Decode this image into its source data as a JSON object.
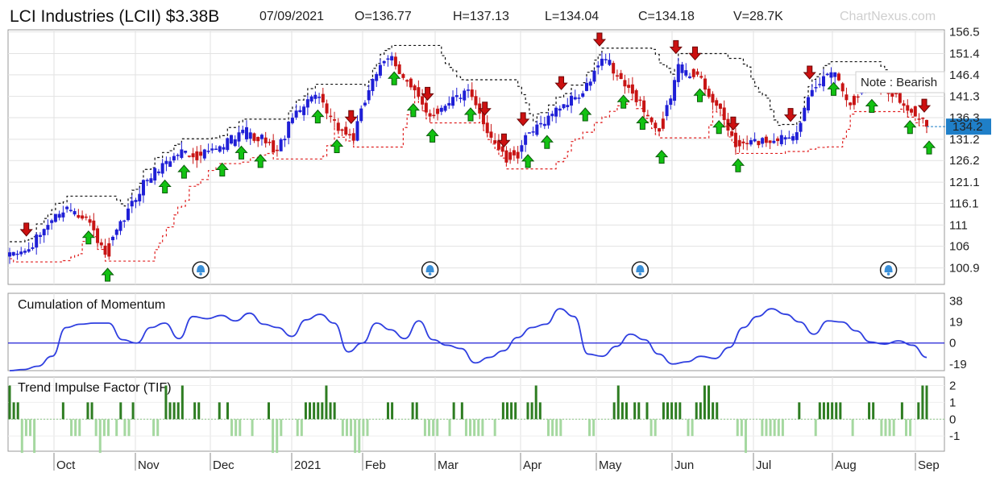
{
  "header": {
    "title": "LCI Industries (LCII) $3.38B",
    "date": "07/09/2021",
    "open": "O=136.77",
    "high": "H=137.13",
    "low": "L=134.04",
    "close": "C=134.18",
    "volume": "V=28.7K",
    "brand": "ChartNexus.com"
  },
  "colors": {
    "bull": "#1f1fd6",
    "bear": "#c81414",
    "momentum": "#2f3fe0",
    "tif_up": "#2e7d22",
    "tif_down": "#a5d8a0",
    "arrow_up": "#12c212",
    "arrow_down": "#cc1010",
    "price_tag": "#1f7fc8",
    "grid": "#e2e2e2"
  },
  "months": [
    "Oct",
    "Nov",
    "Dec",
    "2021",
    "Feb",
    "Mar",
    "Apr",
    "May",
    "Jun",
    "Jul",
    "Aug",
    "Sep"
  ],
  "chart_data": [
    {
      "type": "candlestick",
      "name": "price",
      "ylim": [
        97,
        157
      ],
      "y_ticks": [
        156.5,
        151.4,
        146.4,
        141.3,
        136.3,
        131.2,
        126.2,
        121.1,
        116.1,
        111,
        106,
        100.9
      ],
      "current_price": "134.2",
      "annotation": "Note : Bearish",
      "closes_weekly": [
        103.5,
        105,
        111.5,
        115,
        113,
        104,
        112.5,
        121,
        125,
        128.5,
        127.5,
        129,
        133,
        131,
        128.5,
        138,
        141.5,
        134.5,
        131.5,
        146,
        150.5,
        143,
        137,
        140.5,
        142,
        133.5,
        126,
        131,
        135.5,
        139.5,
        142,
        150,
        145,
        140,
        132,
        148,
        146.5,
        139,
        130,
        130.5,
        131.5,
        132,
        142,
        148,
        140,
        144,
        143,
        139,
        134.2
      ],
      "buy_signal_weeks": [
        4,
        5,
        8,
        9,
        11,
        12,
        13,
        16,
        17,
        20,
        21,
        22,
        24,
        27,
        28,
        30,
        32,
        33,
        34,
        36,
        37,
        38,
        43,
        45,
        47,
        48
      ],
      "sell_signal_weeks": [
        1,
        18,
        22,
        25,
        26,
        27,
        29,
        31,
        35,
        36,
        38,
        41,
        42,
        48
      ],
      "alert_weeks": [
        10,
        22,
        33,
        46
      ]
    },
    {
      "type": "line",
      "name": "Cumulation of Momentum",
      "title": "Cumulation of Momentum",
      "ylim": [
        -25,
        45
      ],
      "y_ticks": [
        38,
        19,
        0,
        -19
      ],
      "baseline": 0,
      "values_weekly": [
        -27,
        -24,
        -21,
        -12,
        14,
        17,
        18,
        18,
        3,
        0,
        14,
        18,
        4,
        24,
        22,
        25,
        20,
        27,
        17,
        14,
        6,
        21,
        26,
        18,
        -8,
        0,
        18,
        12,
        4,
        20,
        3,
        -2,
        -5,
        -18,
        -13,
        -7,
        5,
        14,
        17,
        31,
        24,
        -10,
        -12,
        -3,
        8,
        3,
        -10,
        -19,
        -17,
        -12,
        -14,
        -4,
        14,
        24,
        31,
        26,
        19,
        8,
        20,
        19,
        11,
        1,
        -1,
        2,
        -2,
        -13
      ]
    },
    {
      "type": "bar",
      "name": "Trend Impulse Factor (TIF)",
      "title": "Trend Impulse Factor (TIF)",
      "ylim": [
        -1.9,
        2.5
      ],
      "y_ticks": [
        2,
        1,
        0,
        -1
      ],
      "values_daily": [
        2,
        1,
        1,
        -2,
        -1,
        -1,
        -2,
        0,
        0,
        0,
        0,
        0,
        0,
        1,
        0,
        -1,
        -1,
        -1,
        0,
        1,
        1,
        -1,
        -2,
        -1,
        -1,
        0,
        -1,
        1,
        -1,
        -1,
        1,
        0,
        0,
        0,
        0,
        -1,
        -1,
        0,
        2,
        1,
        1,
        1,
        2,
        0,
        0,
        1,
        1,
        0,
        0,
        0,
        0,
        1,
        0,
        1,
        -1,
        -1,
        -1,
        0,
        0,
        -1,
        0,
        0,
        0,
        1,
        -2,
        -2,
        -1,
        0,
        0,
        0,
        -1,
        -1,
        1,
        1,
        1,
        1,
        1,
        2,
        1,
        1,
        0,
        -1,
        -1,
        -1,
        -2,
        -2,
        -1,
        -1,
        0,
        0,
        0,
        0,
        1,
        1,
        0,
        0,
        0,
        0,
        1,
        1,
        0,
        -1,
        -1,
        -1,
        -1,
        0,
        0,
        -1,
        1,
        0,
        1,
        -1,
        -1,
        -1,
        -1,
        -1,
        0,
        0,
        -1,
        0,
        1,
        1,
        1,
        1,
        0,
        0,
        1,
        1,
        2,
        1,
        0,
        -1,
        -1,
        -1,
        -1,
        0,
        0,
        0,
        0,
        0,
        0,
        -1,
        -1,
        0,
        0,
        0,
        0,
        1,
        2,
        1,
        1,
        0,
        1,
        1,
        0,
        1,
        -1,
        -1,
        0,
        1,
        1,
        1,
        1,
        1,
        0,
        -1,
        -1,
        1,
        1,
        2,
        2,
        1,
        1,
        0,
        0,
        0,
        0,
        -1,
        -1,
        -2,
        0,
        0,
        0,
        -1,
        -1,
        -1,
        -1,
        -1,
        -1,
        0,
        0,
        0,
        1,
        0,
        0,
        0,
        -1,
        1,
        1,
        1,
        1,
        1,
        1,
        0,
        0,
        -1,
        0,
        0,
        0,
        1,
        1,
        0,
        -1,
        -1,
        -1,
        -1,
        0,
        1,
        -1,
        -1,
        0,
        1,
        2,
        2
      ]
    }
  ]
}
